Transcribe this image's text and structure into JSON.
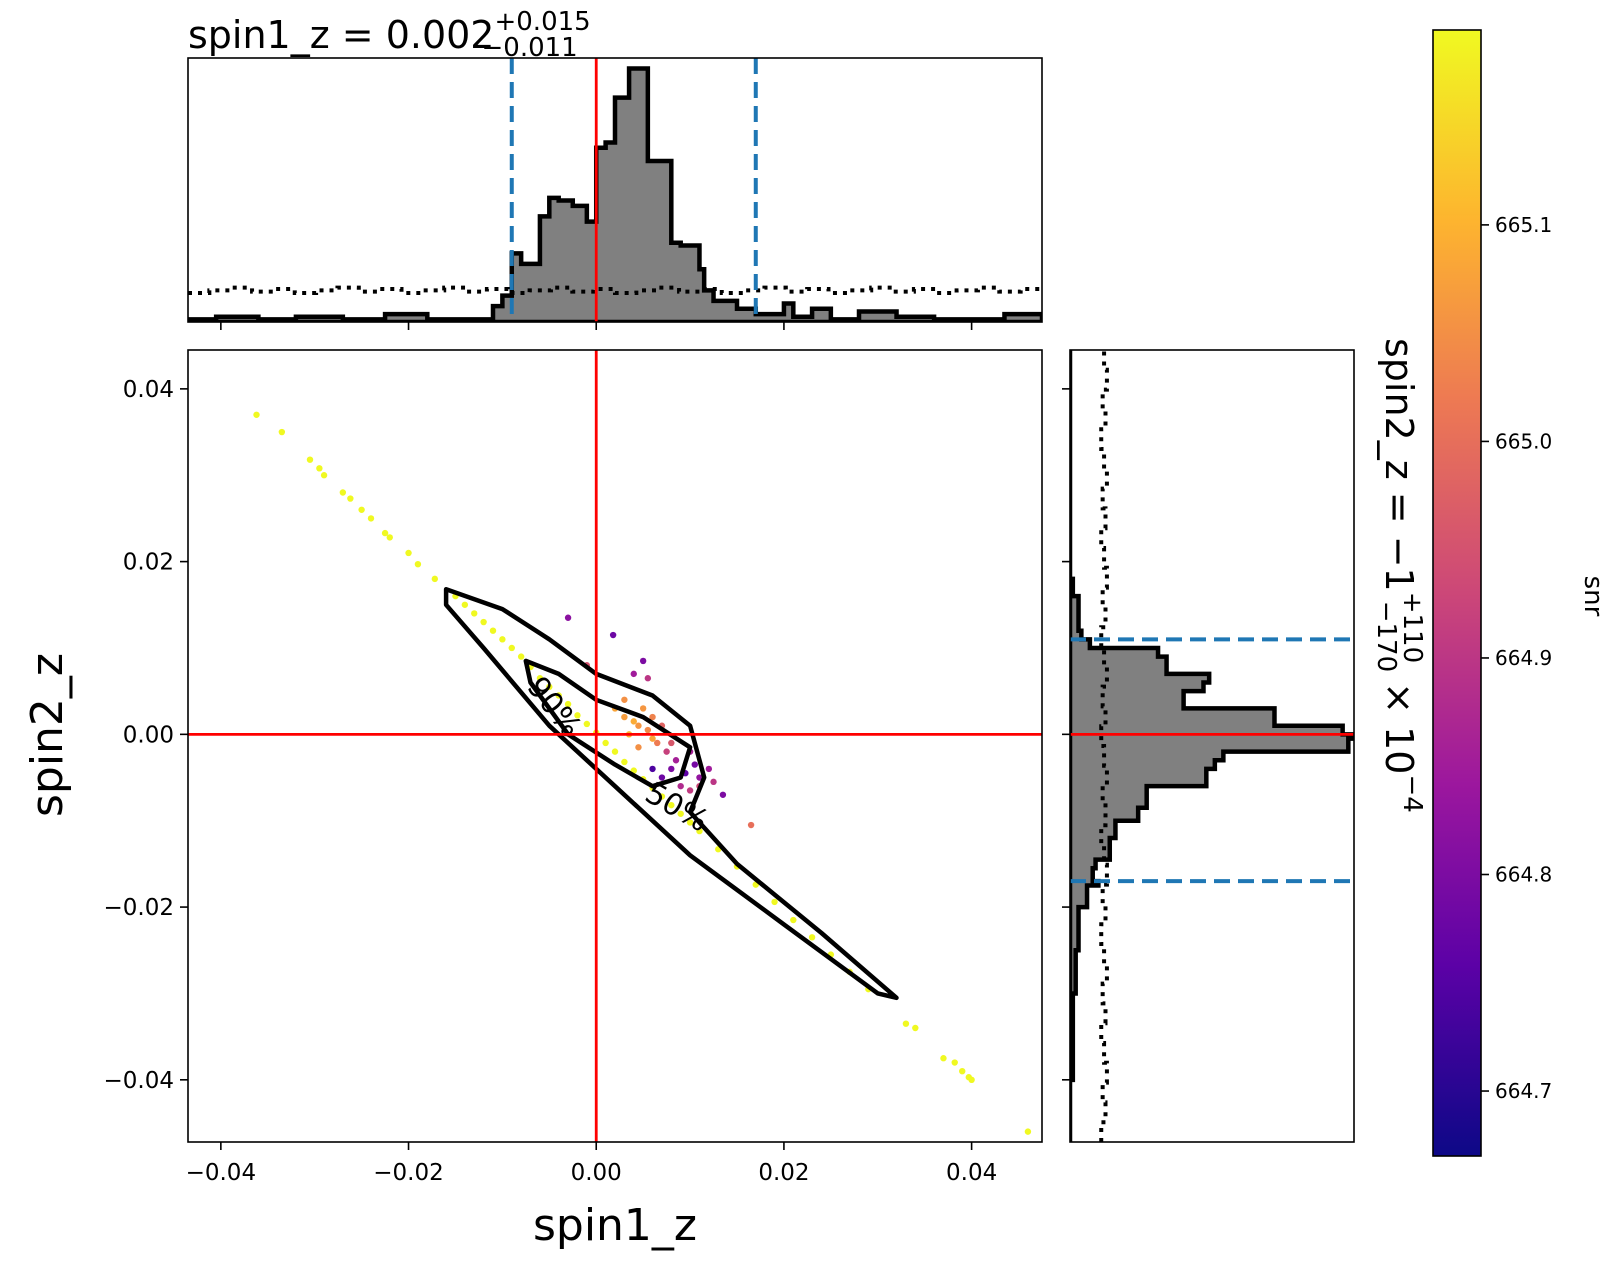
{
  "chart_data": {
    "type": "scatter",
    "title": {
      "param": "spin1_z",
      "median": "0.002",
      "plus": "+0.015",
      "minus": "−0.011"
    },
    "side_title": {
      "param": "spin2_z",
      "median": "−1",
      "plus": "+110",
      "minus": "−170",
      "factor": "× 10",
      "exponent": "−4"
    },
    "xlabel": "spin1_z",
    "ylabel": "spin2_z",
    "colorbar_label": "snr",
    "xlim": [
      -0.0435,
      0.0475
    ],
    "ylim": [
      -0.0472,
      0.0445
    ],
    "x_ticks": [
      "−0.04",
      "−0.02",
      "0.00",
      "0.02",
      "0.04"
    ],
    "x_tick_values": [
      -0.04,
      -0.02,
      0.0,
      0.02,
      0.04
    ],
    "y_ticks": [
      "0.04",
      "0.02",
      "0.00",
      "−0.02",
      "−0.04"
    ],
    "y_tick_values": [
      0.04,
      0.02,
      0.0,
      -0.02,
      -0.04
    ],
    "injection": {
      "x": 0.0,
      "y": 0.0,
      "color": "#ff0000"
    },
    "x_credible_interval": [
      -0.009,
      0.017
    ],
    "y_credible_interval": [
      -0.017,
      0.011
    ],
    "interval_color": "#1f77b4",
    "contour_labels": [
      "90%",
      "50%"
    ],
    "colorbar": {
      "min": 664.67,
      "max": 665.19,
      "ticks": [
        "665.1",
        "665.0",
        "664.9",
        "664.8",
        "664.7"
      ],
      "tick_values": [
        665.1,
        665.0,
        664.9,
        664.8,
        664.7
      ]
    },
    "points": [
      {
        "x": -0.0362,
        "y": 0.037,
        "snr": 665.19
      },
      {
        "x": -0.0335,
        "y": 0.035,
        "snr": 665.19
      },
      {
        "x": -0.0305,
        "y": 0.0318,
        "snr": 665.19
      },
      {
        "x": -0.0295,
        "y": 0.0308,
        "snr": 665.19
      },
      {
        "x": -0.029,
        "y": 0.03,
        "snr": 665.19
      },
      {
        "x": -0.027,
        "y": 0.028,
        "snr": 665.19
      },
      {
        "x": -0.0262,
        "y": 0.0273,
        "snr": 665.19
      },
      {
        "x": -0.025,
        "y": 0.026,
        "snr": 665.19
      },
      {
        "x": -0.024,
        "y": 0.025,
        "snr": 665.19
      },
      {
        "x": -0.0225,
        "y": 0.0233,
        "snr": 665.19
      },
      {
        "x": -0.022,
        "y": 0.0228,
        "snr": 665.19
      },
      {
        "x": -0.02,
        "y": 0.021,
        "snr": 665.19
      },
      {
        "x": -0.019,
        "y": 0.0197,
        "snr": 665.19
      },
      {
        "x": -0.0172,
        "y": 0.018,
        "snr": 665.19
      },
      {
        "x": -0.015,
        "y": 0.016,
        "snr": 665.19
      },
      {
        "x": -0.014,
        "y": 0.015,
        "snr": 665.19
      },
      {
        "x": -0.013,
        "y": 0.014,
        "snr": 665.19
      },
      {
        "x": -0.012,
        "y": 0.013,
        "snr": 665.19
      },
      {
        "x": -0.011,
        "y": 0.012,
        "snr": 665.19
      },
      {
        "x": -0.01,
        "y": 0.011,
        "snr": 665.19
      },
      {
        "x": -0.009,
        "y": 0.01,
        "snr": 665.19
      },
      {
        "x": -0.008,
        "y": 0.009,
        "snr": 665.19
      },
      {
        "x": -0.007,
        "y": 0.0078,
        "snr": 665.19
      },
      {
        "x": -0.006,
        "y": 0.0065,
        "snr": 665.19
      },
      {
        "x": -0.005,
        "y": 0.0055,
        "snr": 665.19
      },
      {
        "x": -0.004,
        "y": 0.0045,
        "snr": 665.19
      },
      {
        "x": -0.003,
        "y": 0.0035,
        "snr": 665.19
      },
      {
        "x": -0.002,
        "y": 0.0022,
        "snr": 665.19
      },
      {
        "x": -0.001,
        "y": 0.0012,
        "snr": 665.19
      },
      {
        "x": 0.0,
        "y": 0.0002,
        "snr": 665.19
      },
      {
        "x": 0.001,
        "y": -0.001,
        "snr": 665.19
      },
      {
        "x": 0.002,
        "y": -0.002,
        "snr": 665.19
      },
      {
        "x": 0.003,
        "y": -0.0032,
        "snr": 665.19
      },
      {
        "x": 0.004,
        "y": -0.0042,
        "snr": 665.19
      },
      {
        "x": 0.005,
        "y": -0.0052,
        "snr": 665.19
      },
      {
        "x": 0.006,
        "y": -0.0062,
        "snr": 665.19
      },
      {
        "x": 0.007,
        "y": -0.0072,
        "snr": 665.19
      },
      {
        "x": 0.008,
        "y": -0.0082,
        "snr": 665.19
      },
      {
        "x": 0.009,
        "y": -0.0092,
        "snr": 665.19
      },
      {
        "x": 0.01,
        "y": -0.0102,
        "snr": 665.19
      },
      {
        "x": 0.011,
        "y": -0.0112,
        "snr": 665.19
      },
      {
        "x": 0.013,
        "y": -0.0133,
        "snr": 665.19
      },
      {
        "x": 0.015,
        "y": -0.0153,
        "snr": 665.19
      },
      {
        "x": 0.017,
        "y": -0.0174,
        "snr": 665.19
      },
      {
        "x": 0.019,
        "y": -0.0194,
        "snr": 665.19
      },
      {
        "x": 0.021,
        "y": -0.0215,
        "snr": 665.19
      },
      {
        "x": 0.023,
        "y": -0.0235,
        "snr": 665.19
      },
      {
        "x": 0.025,
        "y": -0.0255,
        "snr": 665.19
      },
      {
        "x": 0.027,
        "y": -0.0275,
        "snr": 665.19
      },
      {
        "x": 0.029,
        "y": -0.0295,
        "snr": 665.19
      },
      {
        "x": 0.034,
        "y": -0.034,
        "snr": 665.19
      },
      {
        "x": 0.033,
        "y": -0.0335,
        "snr": 665.19
      },
      {
        "x": 0.037,
        "y": -0.0375,
        "snr": 665.19
      },
      {
        "x": 0.0382,
        "y": -0.038,
        "snr": 665.19
      },
      {
        "x": 0.039,
        "y": -0.039,
        "snr": 665.19
      },
      {
        "x": 0.0397,
        "y": -0.0397,
        "snr": 665.19
      },
      {
        "x": 0.04,
        "y": -0.04,
        "snr": 665.19
      },
      {
        "x": 0.046,
        "y": -0.046,
        "snr": 665.19
      },
      {
        "x": -0.003,
        "y": 0.0135,
        "snr": 664.82
      },
      {
        "x": 0.0018,
        "y": 0.0115,
        "snr": 664.78
      },
      {
        "x": 0.005,
        "y": 0.0085,
        "snr": 664.8
      },
      {
        "x": 0.004,
        "y": 0.007,
        "snr": 664.85
      },
      {
        "x": 0.0055,
        "y": 0.0065,
        "snr": 664.9
      },
      {
        "x": -0.001,
        "y": 0.008,
        "snr": 664.95
      },
      {
        "x": 0.003,
        "y": 0.004,
        "snr": 665.05
      },
      {
        "x": 0.003,
        "y": 0.002,
        "snr": 665.07
      },
      {
        "x": 0.0045,
        "y": 0.001,
        "snr": 665.06
      },
      {
        "x": 0.0055,
        "y": 0.0005,
        "snr": 665.04
      },
      {
        "x": 0.006,
        "y": -0.0005,
        "snr": 665.08
      },
      {
        "x": 0.007,
        "y": 0.001,
        "snr": 664.98
      },
      {
        "x": 0.0065,
        "y": -0.001,
        "snr": 665.02
      },
      {
        "x": 0.0075,
        "y": -0.002,
        "snr": 664.92
      },
      {
        "x": 0.008,
        "y": -0.004,
        "snr": 664.8
      },
      {
        "x": 0.0085,
        "y": -0.003,
        "snr": 664.86
      },
      {
        "x": 0.0095,
        "y": -0.0045,
        "snr": 664.76
      },
      {
        "x": 0.0105,
        "y": -0.0035,
        "snr": 664.79
      },
      {
        "x": 0.011,
        "y": -0.005,
        "snr": 664.83
      },
      {
        "x": 0.012,
        "y": -0.004,
        "snr": 664.85
      },
      {
        "x": 0.009,
        "y": -0.006,
        "snr": 664.88
      },
      {
        "x": 0.01,
        "y": -0.0065,
        "snr": 664.91
      },
      {
        "x": 0.006,
        "y": -0.004,
        "snr": 664.74
      },
      {
        "x": 0.007,
        "y": -0.005,
        "snr": 664.78
      },
      {
        "x": 0.008,
        "y": -0.001,
        "snr": 664.96
      },
      {
        "x": 0.005,
        "y": 0.003,
        "snr": 665.06
      },
      {
        "x": 0.004,
        "y": 0.0015,
        "snr": 665.09
      },
      {
        "x": 0.002,
        "y": 0.003,
        "snr": 665.08
      },
      {
        "x": 0.01,
        "y": -0.002,
        "snr": 664.86
      },
      {
        "x": 0.011,
        "y": -0.006,
        "snr": 664.93
      },
      {
        "x": 0.0125,
        "y": -0.0055,
        "snr": 664.9
      },
      {
        "x": 0.0135,
        "y": -0.007,
        "snr": 664.8
      },
      {
        "x": 0.0165,
        "y": -0.0105,
        "snr": 665.0
      },
      {
        "x": 0.006,
        "y": 0.002,
        "snr": 665.03
      },
      {
        "x": 0.0045,
        "y": -0.0015,
        "snr": 665.05
      },
      {
        "x": 0.0035,
        "y": 0.0,
        "snr": 665.1
      }
    ],
    "contours": {
      "c90": [
        [
          -0.016,
          0.0168
        ],
        [
          -0.01,
          0.0145
        ],
        [
          -0.005,
          0.011
        ],
        [
          0.0,
          0.007
        ],
        [
          0.006,
          0.0045
        ],
        [
          0.01,
          0.001
        ],
        [
          0.0115,
          -0.005
        ],
        [
          0.01,
          -0.009
        ],
        [
          0.015,
          -0.015
        ],
        [
          0.024,
          -0.023
        ],
        [
          0.032,
          -0.0305
        ],
        [
          0.03,
          -0.03
        ],
        [
          0.02,
          -0.022
        ],
        [
          0.01,
          -0.014
        ],
        [
          0.002,
          -0.006
        ],
        [
          -0.005,
          0.001
        ],
        [
          -0.012,
          0.01
        ],
        [
          -0.016,
          0.015
        ]
      ],
      "c50": [
        [
          -0.0075,
          0.0085
        ],
        [
          -0.004,
          0.007
        ],
        [
          0.0,
          0.004
        ],
        [
          0.005,
          0.002
        ],
        [
          0.01,
          -0.0015
        ],
        [
          0.009,
          -0.005
        ],
        [
          0.006,
          -0.006
        ],
        [
          0.002,
          -0.0035
        ],
        [
          -0.003,
          0.0
        ],
        [
          -0.007,
          0.006
        ]
      ]
    },
    "x_hist": {
      "edges": [
        -0.0435,
        -0.0405,
        -0.036,
        -0.032,
        -0.027,
        -0.0225,
        -0.018,
        -0.015,
        -0.011,
        -0.01,
        -0.009,
        -0.008,
        -0.006,
        -0.005,
        -0.004,
        -0.0025,
        -0.001,
        0.0,
        0.001,
        0.002,
        0.0035,
        0.0055,
        0.0065,
        0.008,
        0.009,
        0.011,
        0.0115,
        0.0125,
        0.014,
        0.015,
        0.017,
        0.019,
        0.02,
        0.021,
        0.023,
        0.025,
        0.028,
        0.032,
        0.036,
        0.04,
        0.0435,
        0.0475
      ],
      "values": [
        1,
        2,
        1,
        2,
        1,
        3,
        1,
        1,
        6,
        10,
        26,
        22,
        40,
        47,
        46,
        44,
        38,
        66,
        68,
        85,
        96,
        61,
        61,
        30,
        29,
        20,
        12,
        8,
        8,
        5,
        3,
        3,
        7,
        2,
        5,
        1,
        4,
        2,
        1,
        1,
        3
      ],
      "prior_level": 12
    },
    "y_hist": {
      "edges": [
        -0.0472,
        -0.04,
        -0.03,
        -0.025,
        -0.02,
        -0.0175,
        -0.017,
        -0.0155,
        -0.0145,
        -0.012,
        -0.01,
        -0.0085,
        -0.007,
        -0.006,
        -0.005,
        -0.004,
        -0.003,
        -0.002,
        -0.0005,
        0.0,
        0.001,
        0.002,
        0.003,
        0.004,
        0.005,
        0.006,
        0.007,
        0.008,
        0.009,
        0.01,
        0.011,
        0.012,
        0.014,
        0.016,
        0.018,
        0.0445
      ],
      "values": [
        0,
        1,
        2,
        3,
        6,
        10,
        8,
        9,
        14,
        16,
        24,
        27,
        27,
        48,
        48,
        51,
        54,
        98,
        100,
        96,
        72,
        72,
        40,
        40,
        47,
        49,
        34,
        34,
        31,
        7,
        4,
        3,
        3,
        1,
        0
      ],
      "prior_level": 12
    },
    "colorscale": [
      "#0d0887",
      "#5c01a6",
      "#9c179e",
      "#cc4778",
      "#ed7953",
      "#fdb42f",
      "#f0f921"
    ]
  }
}
